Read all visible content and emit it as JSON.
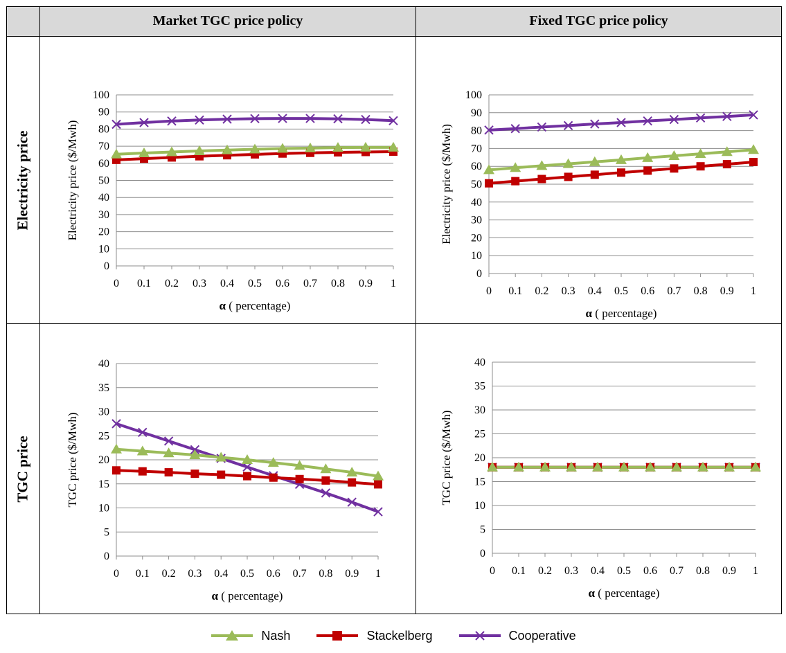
{
  "table": {
    "col_headers": [
      "Market TGC price policy",
      "Fixed TGC price policy"
    ],
    "row_headers": [
      "Electricity price",
      "TGC price"
    ]
  },
  "legend": [
    {
      "name": "Nash",
      "color": "#9bbb59",
      "marker": "triangle"
    },
    {
      "name": "Stackelberg",
      "color": "#c00000",
      "marker": "square"
    },
    {
      "name": "Cooperative",
      "color": "#7030a0",
      "marker": "x"
    }
  ],
  "chart_data": [
    {
      "type": "line",
      "xlabel_bold": "α",
      "xlabel_rest": " ( percentage)",
      "ylabel": "Electricity price ($/Mwh)",
      "ylim": [
        0,
        100
      ],
      "yticks": [
        0,
        10,
        20,
        30,
        40,
        50,
        60,
        70,
        80,
        90,
        100
      ],
      "x": [
        "0",
        "0.1",
        "0.2",
        "0.3",
        "0.4",
        "0.5",
        "0.6",
        "0.7",
        "0.8",
        "0.9",
        "1"
      ],
      "grid": true,
      "series": [
        {
          "name": "Nash",
          "values": [
            65.3,
            66.0,
            66.6,
            67.2,
            67.7,
            68.2,
            68.6,
            68.9,
            69.2,
            69.3,
            69.3
          ]
        },
        {
          "name": "Stackelberg",
          "values": [
            62.0,
            62.7,
            63.4,
            64.1,
            64.7,
            65.2,
            65.7,
            66.1,
            66.4,
            66.6,
            66.8
          ]
        },
        {
          "name": "Cooperative",
          "values": [
            82.8,
            83.8,
            84.7,
            85.3,
            85.8,
            86.1,
            86.2,
            86.2,
            86.0,
            85.6,
            84.9
          ]
        }
      ]
    },
    {
      "type": "line",
      "xlabel_bold": "α",
      "xlabel_rest": " ( percentage)",
      "ylabel": "Electricity price ($/Mwh)",
      "ylim": [
        0,
        100
      ],
      "yticks": [
        0,
        10,
        20,
        30,
        40,
        50,
        60,
        70,
        80,
        90,
        100
      ],
      "x": [
        "0",
        "0.1",
        "0.2",
        "0.3",
        "0.4",
        "0.5",
        "0.6",
        "0.7",
        "0.8",
        "0.9",
        "1"
      ],
      "grid": true,
      "series": [
        {
          "name": "Nash",
          "values": [
            58.0,
            59.2,
            60.3,
            61.4,
            62.5,
            63.6,
            64.8,
            65.9,
            67.0,
            68.1,
            69.3
          ]
        },
        {
          "name": "Stackelberg",
          "values": [
            50.5,
            51.7,
            52.9,
            54.1,
            55.3,
            56.5,
            57.6,
            58.8,
            60.0,
            61.2,
            62.4
          ]
        },
        {
          "name": "Cooperative",
          "values": [
            80.3,
            81.1,
            82.0,
            82.8,
            83.7,
            84.5,
            85.4,
            86.2,
            87.1,
            87.9,
            88.8
          ]
        }
      ]
    },
    {
      "type": "line",
      "xlabel_bold": "α",
      "xlabel_rest": " ( percentage)",
      "ylabel": "TGC price ($/Mwh)",
      "ylim": [
        0,
        40
      ],
      "yticks": [
        0,
        5,
        10,
        15,
        20,
        25,
        30,
        35,
        40
      ],
      "x": [
        "0",
        "0.1",
        "0.2",
        "0.3",
        "0.4",
        "0.5",
        "0.6",
        "0.7",
        "0.8",
        "0.9",
        "1"
      ],
      "grid": true,
      "series": [
        {
          "name": "Nash",
          "values": [
            22.2,
            21.8,
            21.4,
            21.0,
            20.5,
            20.0,
            19.4,
            18.8,
            18.1,
            17.4,
            16.6
          ]
        },
        {
          "name": "Stackelberg",
          "values": [
            17.8,
            17.6,
            17.4,
            17.1,
            16.9,
            16.6,
            16.3,
            16.0,
            15.7,
            15.3,
            14.9
          ]
        },
        {
          "name": "Cooperative",
          "values": [
            27.5,
            25.7,
            23.9,
            22.1,
            20.3,
            18.5,
            16.7,
            14.9,
            13.1,
            11.2,
            9.2
          ]
        }
      ]
    },
    {
      "type": "line",
      "xlabel_bold": "α",
      "xlabel_rest": " ( percentage)",
      "ylabel": "TGC price ($/Mwh)",
      "ylim": [
        0,
        40
      ],
      "yticks": [
        0,
        5,
        10,
        15,
        20,
        25,
        30,
        35,
        40
      ],
      "x": [
        "0",
        "0.1",
        "0.2",
        "0.3",
        "0.4",
        "0.5",
        "0.6",
        "0.7",
        "0.8",
        "0.9",
        "1"
      ],
      "grid": true,
      "series": [
        {
          "name": "Nash",
          "values": [
            18,
            18,
            18,
            18,
            18,
            18,
            18,
            18,
            18,
            18,
            18
          ]
        },
        {
          "name": "Stackelberg",
          "values": [
            18,
            18,
            18,
            18,
            18,
            18,
            18,
            18,
            18,
            18,
            18
          ]
        },
        {
          "name": "Cooperative",
          "values": [
            18,
            18,
            18,
            18,
            18,
            18,
            18,
            18,
            18,
            18,
            18
          ]
        }
      ]
    }
  ]
}
